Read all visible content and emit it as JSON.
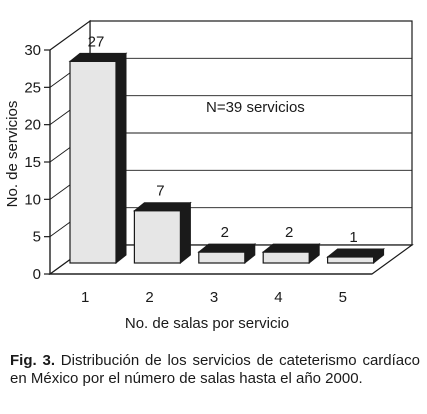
{
  "chart_data": {
    "type": "bar",
    "categories": [
      "1",
      "2",
      "3",
      "4",
      "5"
    ],
    "values": [
      27,
      7,
      2,
      2,
      1
    ],
    "xlabel": "No. de salas por servicio",
    "ylabel": "No. de servicios",
    "ylim": [
      0,
      30
    ],
    "yticks": [
      "0",
      "5",
      "10",
      "15",
      "20",
      "25",
      "30"
    ],
    "annotation": "N=39 servicios",
    "grid": true,
    "style": "3d",
    "colors": {
      "bar_face": "#e6e6e6",
      "bar_top": "#1a1a1a",
      "bar_side": "#1a1a1a",
      "stroke": "#1a1a1a"
    }
  },
  "caption": {
    "label": "Fig. 3.",
    "text": "Distribución de los servicios de cateterismo cardíaco en México por el número de salas hasta el año 2000."
  }
}
